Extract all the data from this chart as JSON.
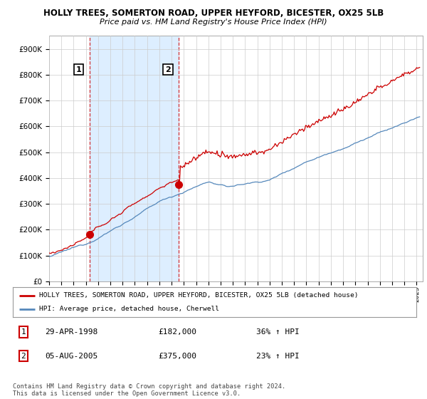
{
  "title1": "HOLLY TREES, SOMERTON ROAD, UPPER HEYFORD, BICESTER, OX25 5LB",
  "title2": "Price paid vs. HM Land Registry's House Price Index (HPI)",
  "legend_line1": "HOLLY TREES, SOMERTON ROAD, UPPER HEYFORD, BICESTER, OX25 5LB (detached house)",
  "legend_line2": "HPI: Average price, detached house, Cherwell",
  "ann1_num": "1",
  "ann1_date": "29-APR-1998",
  "ann1_price": "£182,000",
  "ann1_pct": "36% ↑ HPI",
  "ann2_num": "2",
  "ann2_date": "05-AUG-2005",
  "ann2_price": "£375,000",
  "ann2_pct": "23% ↑ HPI",
  "footer": "Contains HM Land Registry data © Crown copyright and database right 2024.\nThis data is licensed under the Open Government Licence v3.0.",
  "ylabel_ticks": [
    0,
    100000,
    200000,
    300000,
    400000,
    500000,
    600000,
    700000,
    800000,
    900000
  ],
  "xlim_start": 1995.0,
  "xlim_end": 2025.5,
  "ylim_min": 0,
  "ylim_max": 950000,
  "purchase1_year": 1998.33,
  "purchase1_price": 182000,
  "purchase2_year": 2005.6,
  "purchase2_price": 375000,
  "red_color": "#cc0000",
  "blue_color": "#5588bb",
  "shade_color": "#ddeeff",
  "grid_color": "#cccccc",
  "background_color": "#ffffff"
}
